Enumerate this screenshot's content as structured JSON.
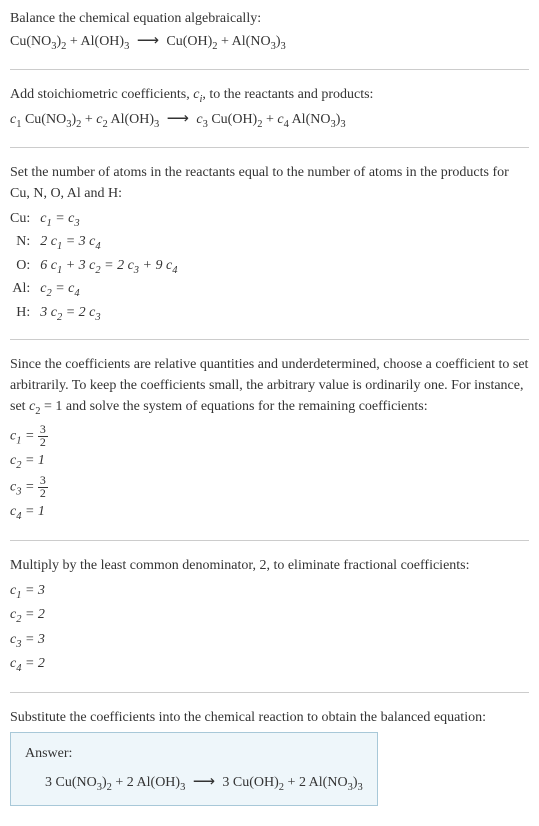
{
  "intro": {
    "line1": "Balance the chemical equation algebraically:",
    "eq_lhs1": "Cu(NO",
    "eq_lhs2": ")",
    "eq_plus": " + Al(OH)",
    "eq_rhs1": "Cu(OH)",
    "eq_rhs2": " + Al(NO",
    "eq_rhs3": ")"
  },
  "stoich": {
    "line1_a": "Add stoichiometric coefficients, ",
    "line1_b": ", to the reactants and products:",
    "ci": "c",
    "ci_sub": "i"
  },
  "atoms": {
    "intro": "Set the number of atoms in the reactants equal to the number of atoms in the products for Cu, N, O, Al and H:",
    "rows": [
      {
        "label": "Cu:",
        "eq": "c₁ = c₃"
      },
      {
        "label": "N:",
        "eq": "2 c₁ = 3 c₄"
      },
      {
        "label": "O:",
        "eq": "6 c₁ + 3 c₂ = 2 c₃ + 9 c₄"
      },
      {
        "label": "Al:",
        "eq": "c₂ = c₄"
      },
      {
        "label": "H:",
        "eq": "3 c₂ = 2 c₃"
      }
    ]
  },
  "arbitrary": {
    "text": "Since the coefficients are relative quantities and underdetermined, choose a coefficient to set arbitrarily. To keep the coefficients small, the arbitrary value is ordinarily one. For instance, set c₂ = 1 and solve the system of equations for the remaining coefficients:",
    "c1_label": "c₁ = ",
    "c1_num": "3",
    "c1_den": "2",
    "c2": "c₂ = 1",
    "c3_label": "c₃ = ",
    "c3_num": "3",
    "c3_den": "2",
    "c4": "c₄ = 1"
  },
  "lcd": {
    "text": "Multiply by the least common denominator, 2, to eliminate fractional coefficients:",
    "lines": [
      "c₁ = 3",
      "c₂ = 2",
      "c₃ = 3",
      "c₄ = 2"
    ]
  },
  "subst": {
    "text": "Substitute the coefficients into the chemical reaction to obtain the balanced equation:"
  },
  "answer": {
    "label": "Answer:"
  },
  "subs": {
    "s3": "3",
    "s2": "2",
    "s1": "1",
    "s4": "4"
  },
  "coefs": {
    "c1": "c",
    "c2": "c",
    "c3": "c",
    "c4": "c",
    "n3": "3",
    "n2": "2"
  },
  "arrow": "⟶"
}
